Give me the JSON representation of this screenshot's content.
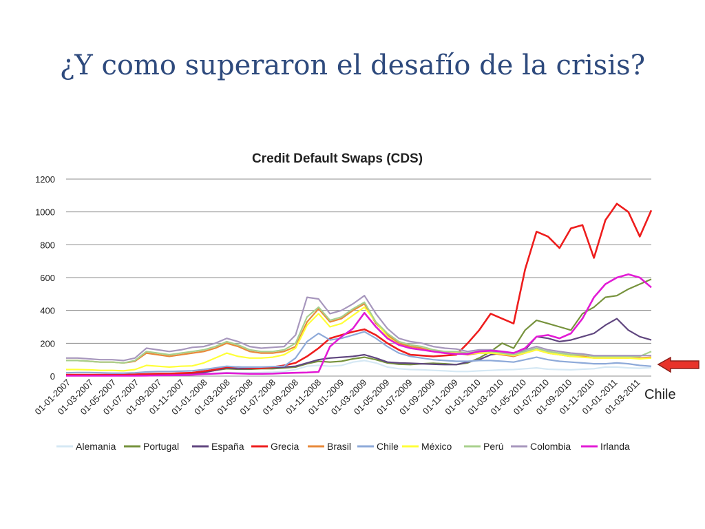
{
  "slide": {
    "title": "¿Y como superaron el desafío de la crisis?"
  },
  "annotation": {
    "label": "Chile",
    "arrow_color": "#e8332a"
  },
  "chart_data": {
    "type": "line",
    "title": "Credit Default Swaps (CDS)",
    "xlabel": "",
    "ylabel": "",
    "ylim": [
      0,
      1200
    ],
    "yticks": [
      0,
      200,
      400,
      600,
      800,
      1000,
      1200
    ],
    "grid": true,
    "legend": "bottom",
    "x_tick_labels": [
      "01-01-2007",
      "01-03-2007",
      "01-05-2007",
      "01-07-2007",
      "01-09-2007",
      "01-11-2007",
      "01-01-2008",
      "01-03-2008",
      "01-05-2008",
      "01-07-2008",
      "01-09-2008",
      "01-11-2008",
      "01-01-2009",
      "01-03-2009",
      "01-05-2009",
      "01-07-2009",
      "01-09-2009",
      "01-11-2009",
      "01-01-2010",
      "01-03-2010",
      "01-05-2010",
      "01-07-2010",
      "01-09-2010",
      "01-11-2010",
      "01-01-2011",
      "01-03-2011"
    ],
    "x": [
      "2007-01",
      "2007-02",
      "2007-03",
      "2007-04",
      "2007-05",
      "2007-06",
      "2007-07",
      "2007-08",
      "2007-09",
      "2007-10",
      "2007-11",
      "2007-12",
      "2008-01",
      "2008-02",
      "2008-03",
      "2008-04",
      "2008-05",
      "2008-06",
      "2008-07",
      "2008-08",
      "2008-09",
      "2008-10",
      "2008-11",
      "2008-12",
      "2009-01",
      "2009-02",
      "2009-03",
      "2009-04",
      "2009-05",
      "2009-06",
      "2009-07",
      "2009-08",
      "2009-09",
      "2009-10",
      "2009-11",
      "2009-12",
      "2010-01",
      "2010-02",
      "2010-03",
      "2010-04",
      "2010-05",
      "2010-06",
      "2010-07",
      "2010-08",
      "2010-09",
      "2010-10",
      "2010-11",
      "2010-12",
      "2011-01",
      "2011-02",
      "2011-03",
      "2011-04"
    ],
    "series": [
      {
        "name": "Alemania",
        "color": "#d5e8f4",
        "values": [
          5,
          5,
          5,
          5,
          5,
          5,
          6,
          7,
          8,
          8,
          9,
          10,
          14,
          18,
          22,
          20,
          20,
          22,
          24,
          28,
          40,
          60,
          65,
          60,
          65,
          85,
          95,
          80,
          55,
          45,
          40,
          38,
          35,
          32,
          28,
          28,
          32,
          35,
          38,
          40,
          45,
          50,
          42,
          40,
          38,
          42,
          45,
          55,
          55,
          50,
          48,
          52
        ]
      },
      {
        "name": "Portugal",
        "color": "#76923c",
        "values": [
          8,
          8,
          8,
          8,
          8,
          8,
          10,
          12,
          14,
          14,
          16,
          18,
          25,
          35,
          45,
          42,
          42,
          45,
          45,
          50,
          55,
          75,
          90,
          85,
          90,
          105,
          115,
          100,
          80,
          72,
          70,
          75,
          78,
          75,
          70,
          80,
          110,
          150,
          200,
          170,
          280,
          340,
          320,
          300,
          280,
          380,
          420,
          480,
          490,
          530,
          560,
          590
        ]
      },
      {
        "name": "España",
        "color": "#60467f",
        "values": [
          5,
          5,
          5,
          5,
          5,
          5,
          6,
          8,
          10,
          10,
          12,
          14,
          22,
          35,
          50,
          45,
          45,
          50,
          52,
          55,
          60,
          80,
          100,
          110,
          115,
          120,
          130,
          110,
          85,
          80,
          78,
          75,
          72,
          70,
          70,
          85,
          100,
          130,
          140,
          120,
          160,
          240,
          230,
          210,
          220,
          240,
          260,
          310,
          350,
          280,
          240,
          220
        ]
      },
      {
        "name": "Grecia",
        "color": "#ee1d1d",
        "values": [
          8,
          8,
          8,
          8,
          8,
          8,
          10,
          12,
          15,
          15,
          18,
          20,
          30,
          40,
          55,
          55,
          50,
          48,
          55,
          65,
          80,
          120,
          170,
          230,
          250,
          270,
          285,
          250,
          200,
          160,
          130,
          125,
          120,
          125,
          130,
          200,
          280,
          380,
          350,
          320,
          650,
          880,
          850,
          780,
          900,
          920,
          720,
          950,
          1050,
          1000,
          850,
          1010
        ]
      },
      {
        "name": "Brasil",
        "color": "#e8893a",
        "values": [
          95,
          95,
          90,
          85,
          85,
          80,
          90,
          140,
          130,
          120,
          130,
          140,
          150,
          170,
          200,
          180,
          150,
          140,
          140,
          150,
          180,
          330,
          410,
          330,
          350,
          400,
          440,
          320,
          250,
          200,
          180,
          170,
          150,
          140,
          140,
          130,
          140,
          140,
          130,
          120,
          140,
          160,
          140,
          130,
          120,
          120,
          110,
          110,
          110,
          110,
          110,
          115
        ]
      },
      {
        "name": "Chile",
        "color": "#8eaad9",
        "values": [
          20,
          22,
          22,
          20,
          18,
          18,
          20,
          25,
          28,
          28,
          30,
          32,
          40,
          50,
          60,
          55,
          55,
          55,
          58,
          60,
          110,
          210,
          260,
          220,
          230,
          250,
          270,
          230,
          180,
          140,
          120,
          110,
          100,
          95,
          90,
          90,
          95,
          95,
          90,
          85,
          100,
          115,
          100,
          90,
          85,
          80,
          75,
          75,
          80,
          75,
          65,
          60
        ]
      },
      {
        "name": "México",
        "color": "#ffff38",
        "values": [
          40,
          40,
          38,
          35,
          35,
          32,
          40,
          65,
          60,
          55,
          60,
          62,
          80,
          110,
          140,
          120,
          110,
          110,
          115,
          130,
          170,
          310,
          380,
          300,
          320,
          370,
          420,
          330,
          240,
          190,
          170,
          160,
          150,
          150,
          145,
          135,
          140,
          140,
          135,
          125,
          140,
          160,
          140,
          130,
          120,
          115,
          110,
          110,
          110,
          110,
          105,
          110
        ]
      },
      {
        "name": "Perú",
        "color": "#a8d08d",
        "values": [
          95,
          95,
          90,
          85,
          85,
          80,
          95,
          150,
          140,
          130,
          140,
          150,
          160,
          180,
          210,
          190,
          160,
          150,
          150,
          160,
          200,
          360,
          420,
          340,
          360,
          410,
          450,
          330,
          260,
          210,
          190,
          180,
          160,
          150,
          150,
          140,
          150,
          150,
          140,
          130,
          150,
          170,
          150,
          140,
          130,
          130,
          120,
          120,
          120,
          120,
          120,
          150
        ]
      },
      {
        "name": "Colombia",
        "color": "#a797bd",
        "values": [
          110,
          110,
          105,
          100,
          100,
          95,
          110,
          170,
          160,
          150,
          160,
          175,
          180,
          200,
          230,
          210,
          180,
          170,
          175,
          180,
          250,
          480,
          470,
          380,
          400,
          440,
          490,
          380,
          290,
          230,
          210,
          200,
          180,
          170,
          165,
          150,
          160,
          160,
          150,
          140,
          160,
          180,
          160,
          150,
          140,
          135,
          125,
          125,
          125,
          125,
          125,
          125
        ]
      },
      {
        "name": "Irlanda",
        "color": "#e21bd5",
        "values": [
          2,
          2,
          2,
          2,
          2,
          2,
          2,
          3,
          4,
          5,
          6,
          8,
          12,
          15,
          18,
          16,
          14,
          14,
          15,
          18,
          20,
          22,
          25,
          180,
          240,
          290,
          385,
          300,
          230,
          190,
          170,
          160,
          150,
          140,
          135,
          135,
          150,
          155,
          150,
          140,
          170,
          240,
          250,
          230,
          260,
          350,
          480,
          560,
          600,
          620,
          600,
          540
        ]
      }
    ]
  }
}
